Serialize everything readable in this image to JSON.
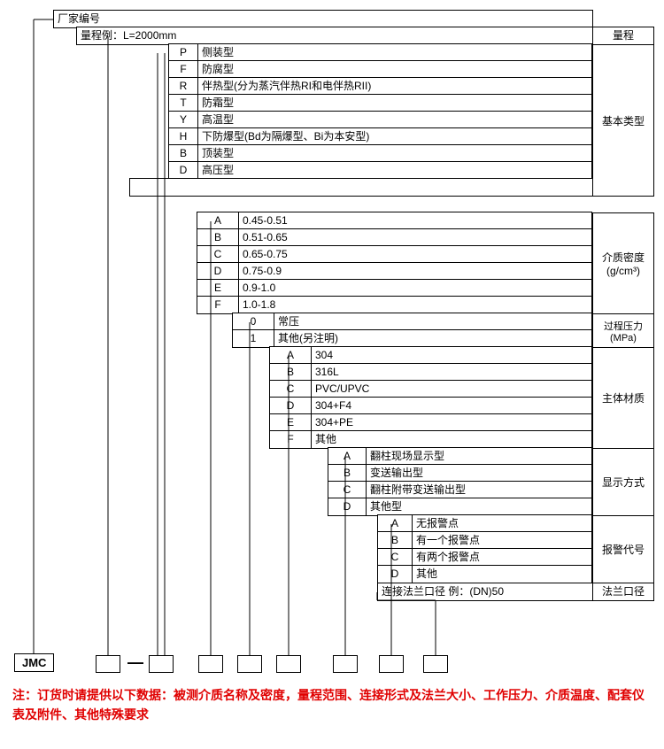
{
  "header": {
    "manufacturer": "厂家编号",
    "range_example": "量程例：L=2000mm",
    "range_label": "量程"
  },
  "basic_type": {
    "label": "基本类型",
    "rows": [
      {
        "code": "P",
        "desc": "侧装型"
      },
      {
        "code": "F",
        "desc": "防腐型"
      },
      {
        "code": "R",
        "desc": "伴热型(分为蒸汽伴热RI和电伴热RII)"
      },
      {
        "code": "T",
        "desc": "防霜型"
      },
      {
        "code": "Y",
        "desc": "高温型"
      },
      {
        "code": "H",
        "desc": "下防爆型(Bd为隔爆型、Bi为本安型)"
      },
      {
        "code": "B",
        "desc": "顶装型"
      },
      {
        "code": "D",
        "desc": "高压型"
      }
    ]
  },
  "density": {
    "label_line1": "介质密度",
    "label_line2": "(g/cm³)",
    "rows": [
      {
        "code": "A",
        "desc": "0.45-0.51"
      },
      {
        "code": "B",
        "desc": "0.51-0.65"
      },
      {
        "code": "C",
        "desc": "0.65-0.75"
      },
      {
        "code": "D",
        "desc": "0.75-0.9"
      },
      {
        "code": "E",
        "desc": "0.9-1.0"
      },
      {
        "code": "F",
        "desc": "1.0-1.8"
      }
    ]
  },
  "pressure": {
    "label_line1": "过程压力",
    "label_line2": "(MPa)",
    "rows": [
      {
        "code": "0",
        "desc": "常压"
      },
      {
        "code": "1",
        "desc": "其他(另注明)"
      }
    ]
  },
  "material": {
    "label": "主体材质",
    "rows": [
      {
        "code": "A",
        "desc": "304"
      },
      {
        "code": "B",
        "desc": "316L"
      },
      {
        "code": "C",
        "desc": "PVC/UPVC"
      },
      {
        "code": "D",
        "desc": "304+F4"
      },
      {
        "code": "E",
        "desc": "304+PE"
      },
      {
        "code": "F",
        "desc": "其他"
      }
    ]
  },
  "display": {
    "label": "显示方式",
    "rows": [
      {
        "code": "A",
        "desc": "翻柱现场显示型"
      },
      {
        "code": "B",
        "desc": "变送输出型"
      },
      {
        "code": "C",
        "desc": "翻柱附带变送输出型"
      },
      {
        "code": "D",
        "desc": "其他型"
      }
    ]
  },
  "alarm": {
    "label": "报警代号",
    "rows": [
      {
        "code": "A",
        "desc": "无报警点"
      },
      {
        "code": "B",
        "desc": "有一个报警点"
      },
      {
        "code": "C",
        "desc": "有两个报警点"
      },
      {
        "code": "D",
        "desc": "其他"
      }
    ]
  },
  "flange": {
    "text": "连接法兰口径 例：(DN)50",
    "label": "法兰口径"
  },
  "jmc": "JMC",
  "note": "注：订货时请提供以下数据：被测介质名称及密度，量程范围、连接形式及法兰大小、工作压力、介质温度、配套仪表及附件、其他特殊要求",
  "style": {
    "border_color": "#000000",
    "note_color": "#e00000",
    "font_size": 12,
    "note_font_size": 14
  }
}
